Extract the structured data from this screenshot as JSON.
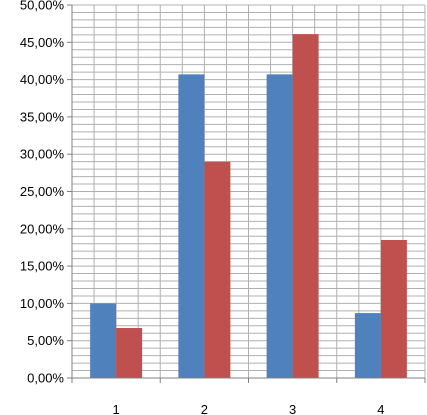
{
  "chart_data": {
    "type": "bar",
    "categories": [
      "1",
      "2",
      "3",
      "4"
    ],
    "series": [
      {
        "values": [
          0.1,
          0.407,
          0.407,
          0.087
        ],
        "color": "#4f81bd"
      },
      {
        "values": [
          0.067,
          0.29,
          0.461,
          0.185
        ],
        "color": "#c0504d"
      }
    ],
    "ylim": [
      0,
      0.5
    ],
    "y_ticks": [
      0,
      0.05,
      0.1,
      0.15,
      0.2,
      0.25,
      0.3,
      0.35,
      0.4,
      0.45,
      0.5
    ],
    "y_tick_labels": [
      "0,00%",
      "5,00%",
      "10,00%",
      "15,00%",
      "20,00%",
      "25,00%",
      "30,00%",
      "35,00%",
      "40,00%",
      "45,00%",
      "50,00%"
    ],
    "grid": {
      "horizontal": true,
      "vertical_minor": true
    },
    "gridline_color": "#b0b0b0",
    "axis_color": "#808080",
    "legend": "none"
  }
}
